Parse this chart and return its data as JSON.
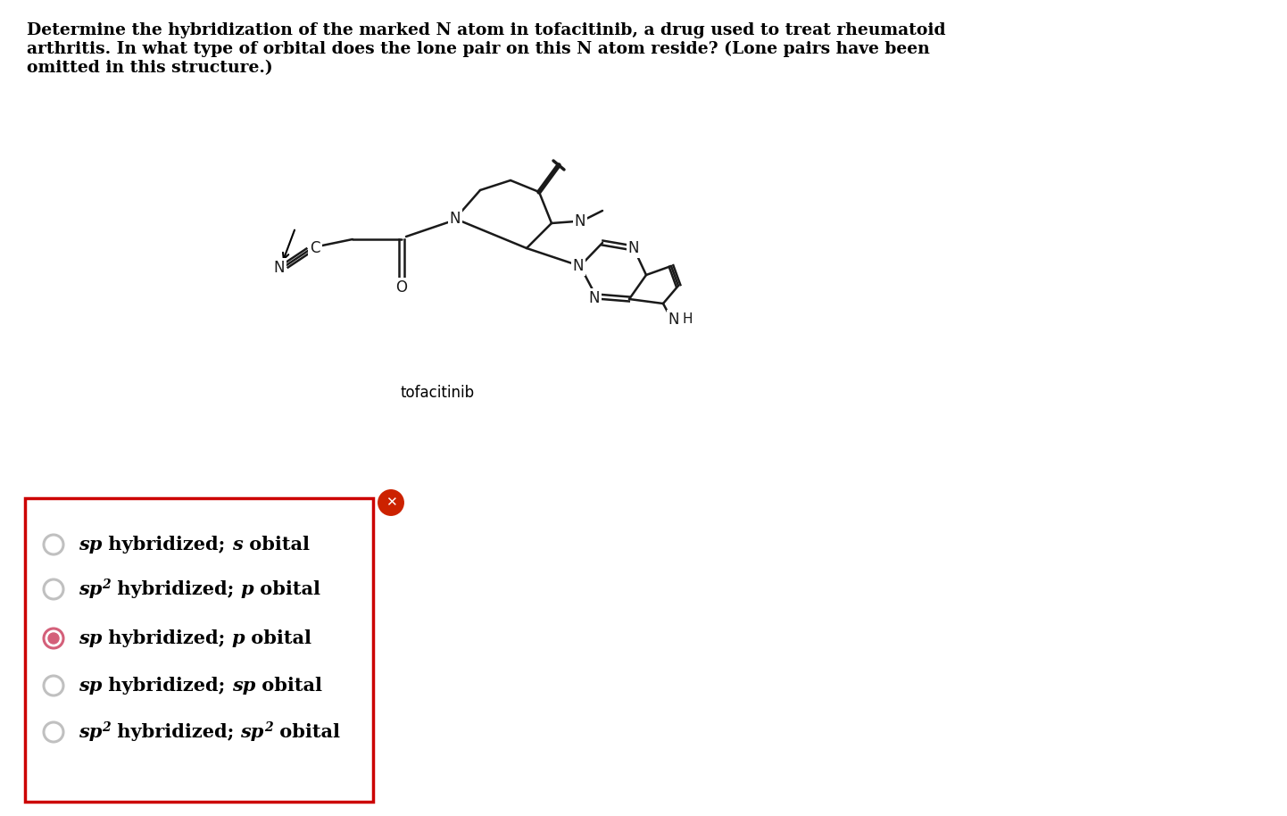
{
  "title_text": "Determine the hybridization of the marked N atom in tofacitinib, a drug used to treat rheumatoid\narthritis. In what type of orbital does the lone pair on this N atom reside? (Lone pairs have been\nomitted in this structure.)",
  "title_fontsize": 13.5,
  "bg_color": "#ffffff",
  "options": [
    {
      "label": "sp hybridized; s obital",
      "selected": false
    },
    {
      "label": "sp2 hybridized; p obital",
      "selected": false
    },
    {
      "label": "sp hybridized; p obital",
      "selected": true
    },
    {
      "label": "sp hybridized; sp obital",
      "selected": false
    },
    {
      "label": "sp2 hybridized; sp2 obital",
      "selected": false
    }
  ],
  "box_border_color": "#cc0000",
  "x_icon_color": "#cc2200",
  "radio_unselected": "#c0c0c0",
  "radio_selected": "#d4607a",
  "tofacitinib_label": "tofacitinib"
}
